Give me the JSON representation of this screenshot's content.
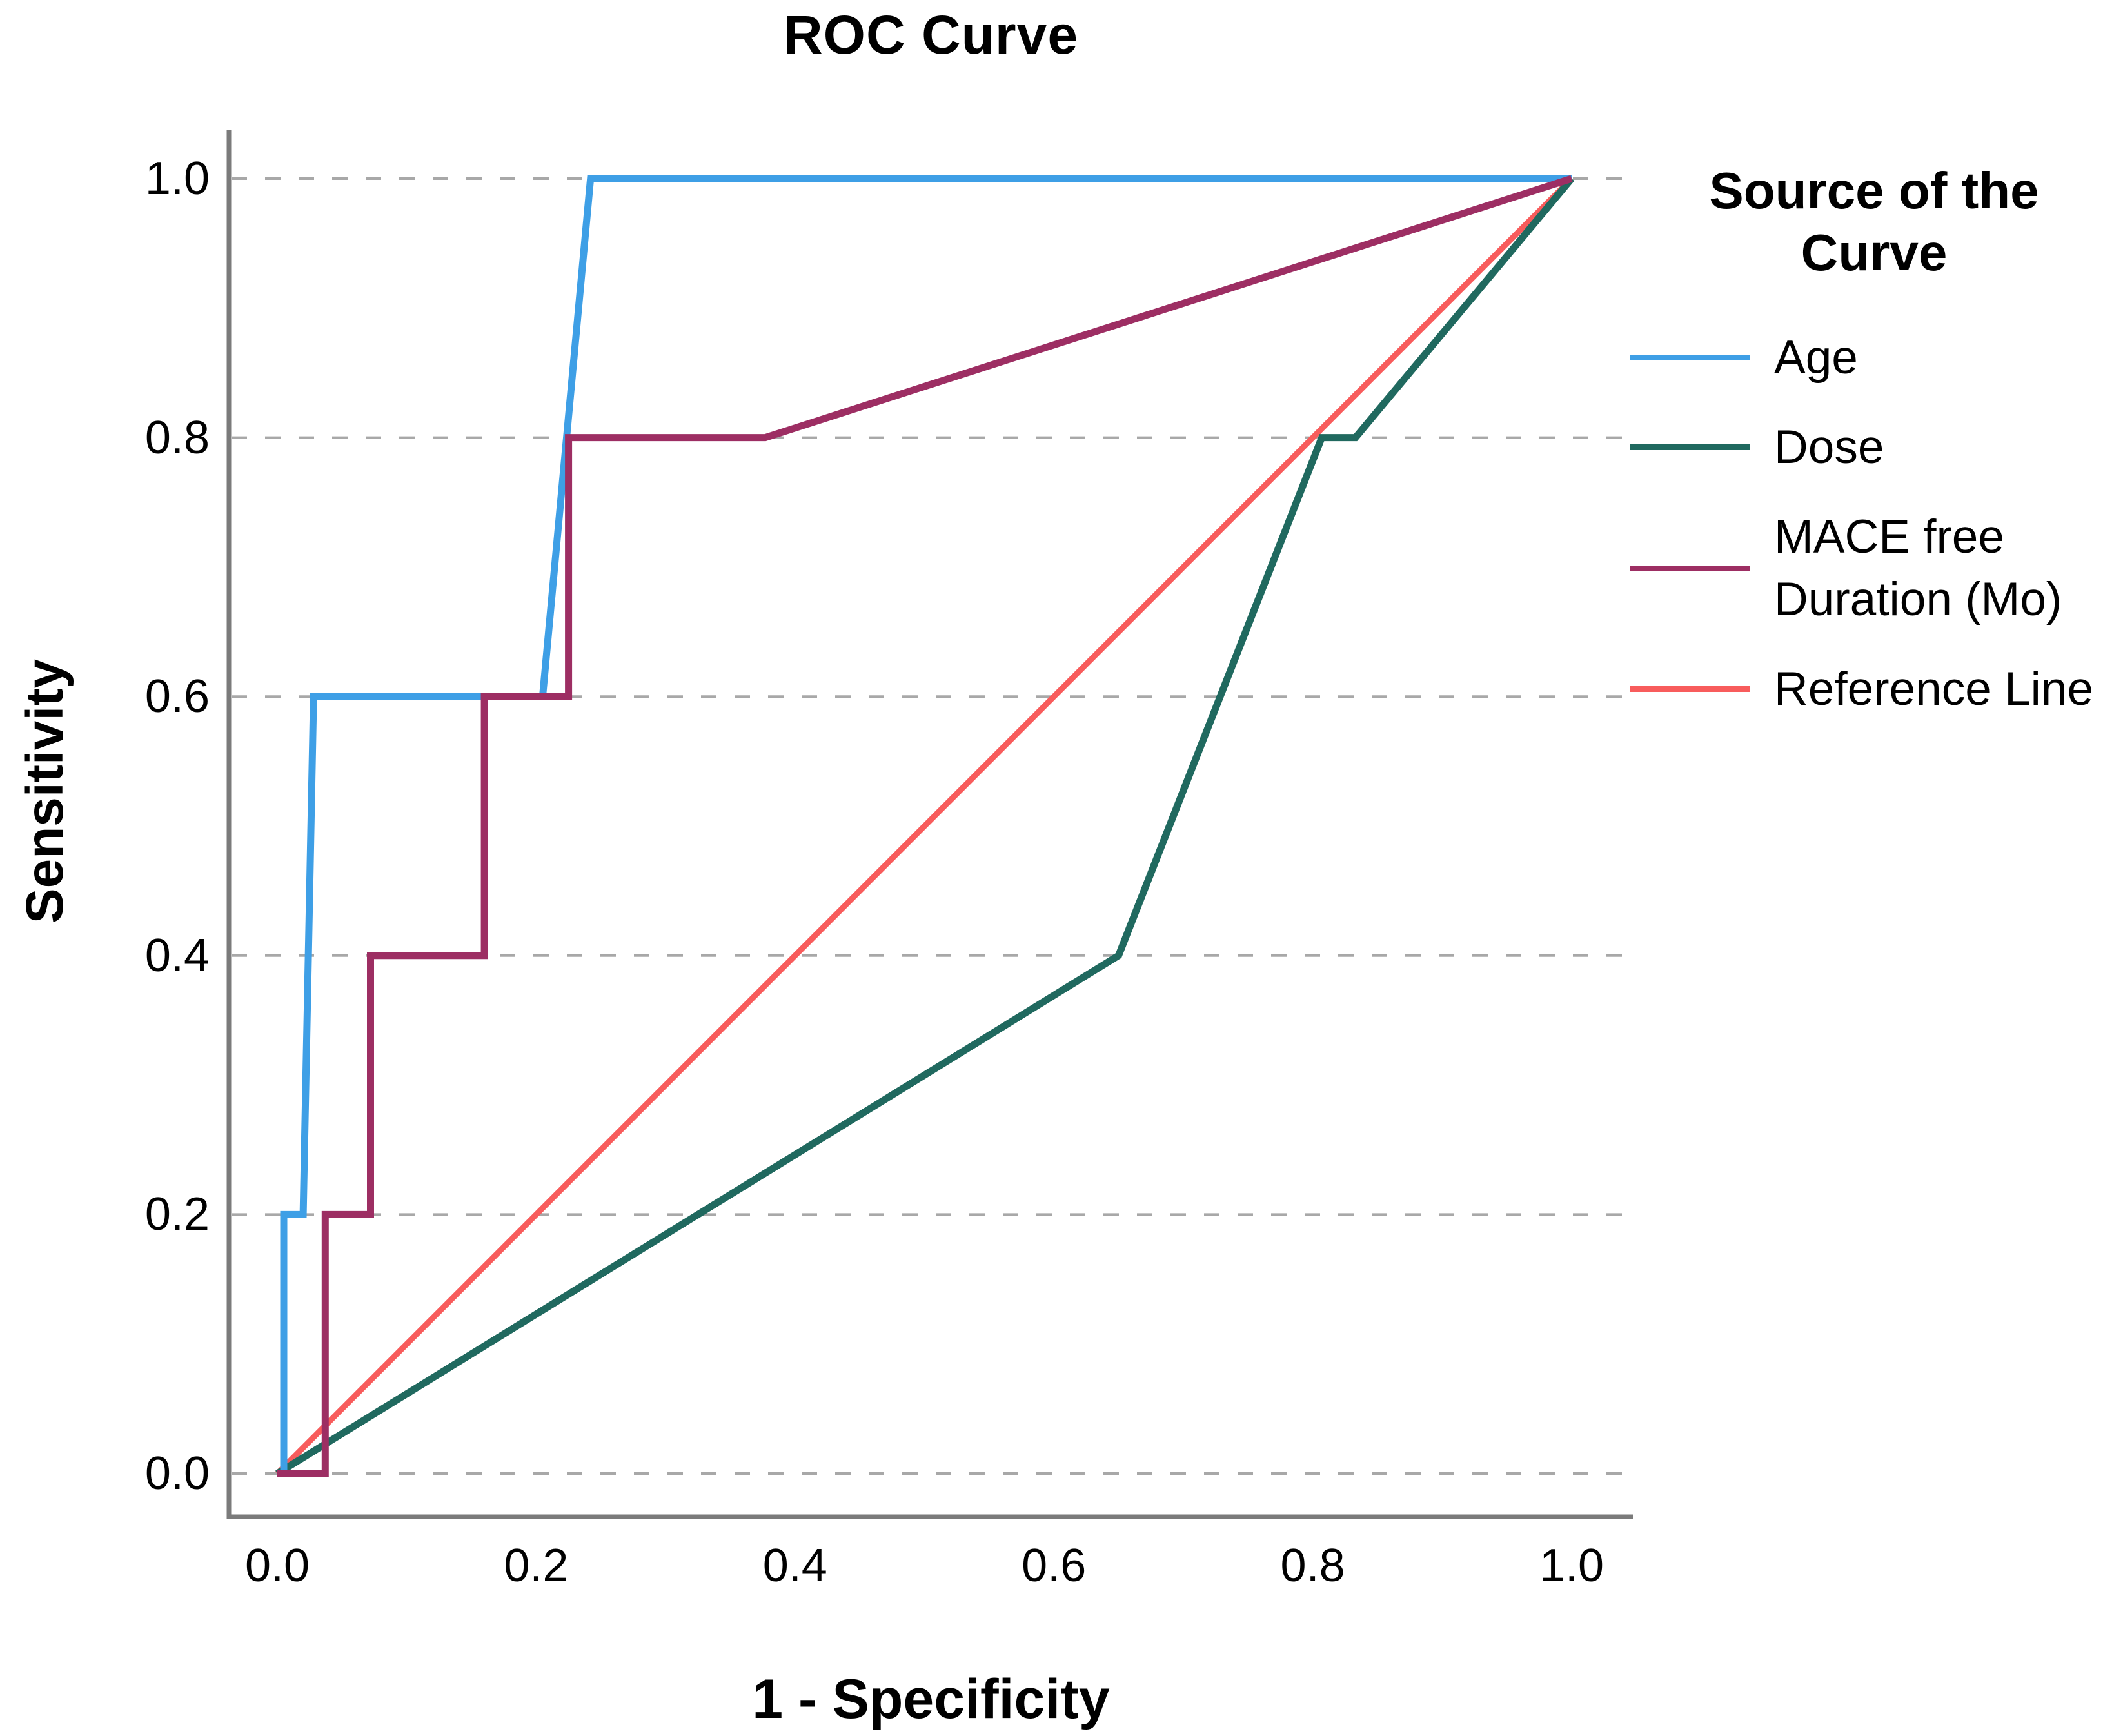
{
  "title": "ROC Curve",
  "axes": {
    "x_label": "1 - Specificity",
    "y_label": "Sensitivity",
    "x_ticks": [
      {
        "label": "0.0",
        "value": 0.0
      },
      {
        "label": "0.2",
        "value": 0.2
      },
      {
        "label": "0.4",
        "value": 0.4
      },
      {
        "label": "0.6",
        "value": 0.6
      },
      {
        "label": "0.8",
        "value": 0.8
      },
      {
        "label": "1.0",
        "value": 1.0
      }
    ],
    "y_ticks": [
      {
        "label": "1.0",
        "value": 1.0
      },
      {
        "label": "0.8",
        "value": 0.8
      },
      {
        "label": "0.6",
        "value": 0.6
      },
      {
        "label": "0.4",
        "value": 0.4
      },
      {
        "label": "0.2",
        "value": 0.2
      },
      {
        "label": "0.0",
        "value": 0.0
      }
    ]
  },
  "legend": {
    "title_line1": "Source of the",
    "title_line2": "Curve",
    "items": [
      {
        "label": "Age",
        "label2": "",
        "color": "#3E9FE6"
      },
      {
        "label": "Dose",
        "label2": "",
        "color": "#20695F"
      },
      {
        "label": "MACE free",
        "label2": "Duration (Mo)",
        "color": "#9D2E63"
      },
      {
        "label": "Reference Line",
        "label2": "",
        "color": "#F85C5C"
      }
    ]
  },
  "colors": {
    "age": "#3E9FE6",
    "dose": "#20695F",
    "mace": "#9D2E63",
    "reference": "#F85C5C",
    "axis": "#7B7B7B",
    "grid": "#A8A8A8"
  },
  "chart_data": {
    "type": "line",
    "title": "ROC Curve",
    "xlabel": "1 - Specificity",
    "ylabel": "Sensitivity",
    "xlim": [
      0,
      1
    ],
    "ylim": [
      0,
      1
    ],
    "grid": "horizontal-dashed-at-0.2-steps",
    "legend_position": "right",
    "series": [
      {
        "name": "Reference Line",
        "color": "#F85C5C",
        "width": 9,
        "points": [
          [
            0,
            0
          ],
          [
            1,
            1
          ]
        ]
      },
      {
        "name": "Dose",
        "color": "#20695F",
        "width": 11,
        "points": [
          [
            0,
            0
          ],
          [
            0.65,
            0.4
          ],
          [
            0.807,
            0.8
          ],
          [
            0.833,
            0.8
          ],
          [
            1,
            1
          ]
        ]
      },
      {
        "name": "Age",
        "color": "#3E9FE6",
        "width": 11,
        "points": [
          [
            0,
            0
          ],
          [
            0.005,
            0
          ],
          [
            0.005,
            0.2
          ],
          [
            0.02,
            0.2
          ],
          [
            0.028,
            0.6
          ],
          [
            0.205,
            0.6
          ],
          [
            0.242,
            1.0
          ],
          [
            1,
            1
          ]
        ]
      },
      {
        "name": "MACE free Duration (Mo)",
        "color": "#9D2E63",
        "width": 11,
        "points": [
          [
            0,
            0
          ],
          [
            0.037,
            0
          ],
          [
            0.037,
            0.2
          ],
          [
            0.072,
            0.2
          ],
          [
            0.072,
            0.4
          ],
          [
            0.16,
            0.4
          ],
          [
            0.16,
            0.6
          ],
          [
            0.225,
            0.6
          ],
          [
            0.225,
            0.8
          ],
          [
            0.377,
            0.8
          ],
          [
            1,
            1
          ]
        ]
      }
    ]
  }
}
